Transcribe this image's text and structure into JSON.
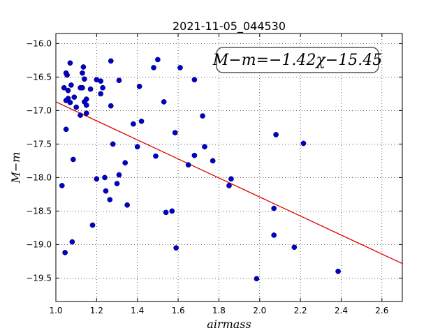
{
  "chart_data": {
    "type": "scatter",
    "title": "2021-11-05_044530",
    "xlabel": "airmass",
    "ylabel": "M−m",
    "annotation": "M−m=−1.42χ−15.45",
    "xlim": [
      1.0,
      2.7
    ],
    "ylim": [
      -15.85,
      -19.85
    ],
    "y_inverted": true,
    "grid": true,
    "xticks": [
      "1.0",
      "1.2",
      "1.4",
      "1.6",
      "1.8",
      "2.0",
      "2.2",
      "2.4",
      "2.6"
    ],
    "yticks": [
      "−16.0",
      "−16.5",
      "−17.0",
      "−17.5",
      "−18.0",
      "−18.5",
      "−19.0",
      "−19.5"
    ],
    "xtick_values": [
      1.0,
      1.2,
      1.4,
      1.6,
      1.8,
      2.0,
      2.2,
      2.4,
      2.6
    ],
    "ytick_values": [
      -16.0,
      -16.5,
      -17.0,
      -17.5,
      -18.0,
      -18.5,
      -19.0,
      -19.5
    ],
    "point_color": "#0000cc",
    "fit_color": "#dd0000",
    "fit": {
      "slope": -1.42,
      "intercept": -15.45
    },
    "points": [
      [
        1.04,
        -16.66
      ],
      [
        1.05,
        -16.44
      ],
      [
        1.055,
        -16.47
      ],
      [
        1.07,
        -16.29
      ],
      [
        1.06,
        -16.7
      ],
      [
        1.075,
        -16.62
      ],
      [
        1.05,
        -16.85
      ],
      [
        1.06,
        -16.82
      ],
      [
        1.07,
        -16.88
      ],
      [
        1.09,
        -16.8
      ],
      [
        1.1,
        -16.95
      ],
      [
        1.12,
        -16.66
      ],
      [
        1.13,
        -16.66
      ],
      [
        1.13,
        -16.44
      ],
      [
        1.135,
        -16.35
      ],
      [
        1.14,
        -16.53
      ],
      [
        1.15,
        -16.83
      ],
      [
        1.14,
        -16.87
      ],
      [
        1.15,
        -16.92
      ],
      [
        1.12,
        -17.07
      ],
      [
        1.15,
        -17.04
      ],
      [
        1.17,
        -16.68
      ],
      [
        1.2,
        -16.54
      ],
      [
        1.22,
        -16.56
      ],
      [
        1.23,
        -16.66
      ],
      [
        1.22,
        -16.75
      ],
      [
        1.27,
        -16.26
      ],
      [
        1.27,
        -16.93
      ],
      [
        1.31,
        -16.55
      ],
      [
        1.05,
        -17.28
      ],
      [
        1.085,
        -17.73
      ],
      [
        1.03,
        -18.12
      ],
      [
        1.045,
        -19.12
      ],
      [
        1.08,
        -18.96
      ],
      [
        1.18,
        -18.71
      ],
      [
        1.2,
        -18.02
      ],
      [
        1.24,
        -18.0
      ],
      [
        1.245,
        -18.2
      ],
      [
        1.265,
        -18.33
      ],
      [
        1.28,
        -17.5
      ],
      [
        1.3,
        -18.09
      ],
      [
        1.31,
        -17.96
      ],
      [
        1.34,
        -17.78
      ],
      [
        1.35,
        -18.41
      ],
      [
        1.38,
        -17.2
      ],
      [
        1.4,
        -17.54
      ],
      [
        1.41,
        -16.64
      ],
      [
        1.42,
        -17.16
      ],
      [
        1.48,
        -16.36
      ],
      [
        1.5,
        -16.24
      ],
      [
        1.49,
        -17.68
      ],
      [
        1.53,
        -16.87
      ],
      [
        1.54,
        -18.52
      ],
      [
        1.57,
        -18.5
      ],
      [
        1.585,
        -17.33
      ],
      [
        1.59,
        -19.05
      ],
      [
        1.61,
        -16.36
      ],
      [
        1.65,
        -17.81
      ],
      [
        1.68,
        -16.54
      ],
      [
        1.68,
        -17.67
      ],
      [
        1.72,
        -17.08
      ],
      [
        1.73,
        -17.54
      ],
      [
        1.77,
        -17.75
      ],
      [
        1.85,
        -18.12
      ],
      [
        1.86,
        -18.02
      ],
      [
        1.985,
        -19.51
      ],
      [
        2.07,
        -18.46
      ],
      [
        2.07,
        -18.86
      ],
      [
        2.08,
        -17.36
      ],
      [
        2.17,
        -19.04
      ],
      [
        2.215,
        -17.49
      ],
      [
        2.385,
        -19.4
      ]
    ]
  }
}
